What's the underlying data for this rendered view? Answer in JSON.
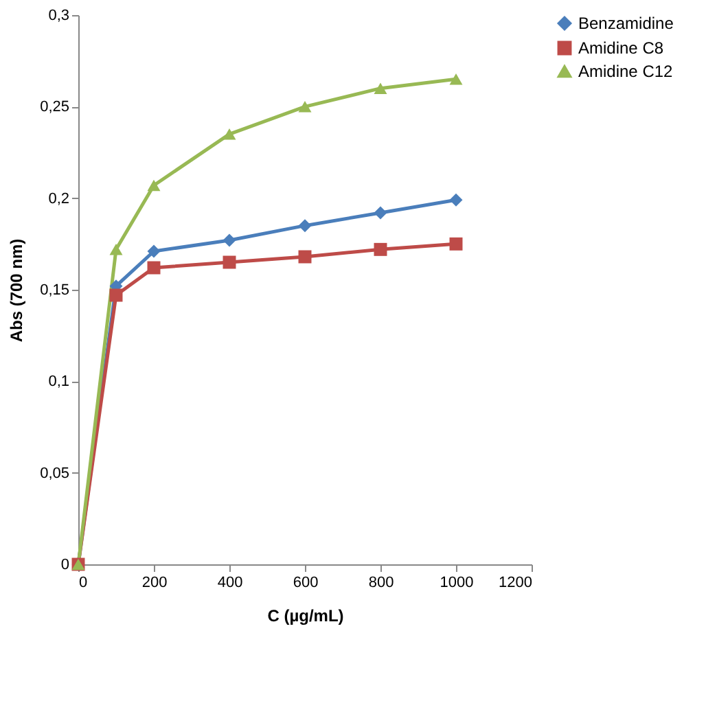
{
  "chart_data": {
    "type": "line",
    "xlabel": "C (µg/mL)",
    "ylabel": "Abs (700 nm)",
    "x": [
      0,
      100,
      200,
      400,
      600,
      800,
      1000
    ],
    "series": [
      {
        "name": "Benzamidine",
        "color": "#4a7ebb",
        "marker": "diamond",
        "values": [
          0,
          0.152,
          0.171,
          0.177,
          0.185,
          0.192,
          0.199
        ]
      },
      {
        "name": "Amidine C8",
        "color": "#be4b48",
        "marker": "square",
        "values": [
          0,
          0.147,
          0.162,
          0.165,
          0.168,
          0.172,
          0.175
        ]
      },
      {
        "name": "Amidine C12",
        "color": "#98b954",
        "marker": "triangle",
        "values": [
          0,
          0.172,
          0.207,
          0.235,
          0.25,
          0.26,
          0.265
        ]
      }
    ],
    "xlim": [
      0,
      1200
    ],
    "xticks": [
      0,
      200,
      400,
      600,
      800,
      1000,
      1200
    ],
    "ylim": [
      0,
      0.3
    ],
    "yticks": [
      0,
      {
        "value": 0.05,
        "label": "0,05"
      },
      {
        "value": 0.1,
        "label": "0,1"
      },
      {
        "value": 0.15,
        "label": "0,15"
      },
      {
        "value": 0.2,
        "label": "0,2"
      },
      {
        "value": 0.25,
        "label": "0,25"
      },
      {
        "value": 0.3,
        "label": "0,3"
      }
    ],
    "grid": false,
    "legend": "right",
    "line_style": "solid"
  }
}
